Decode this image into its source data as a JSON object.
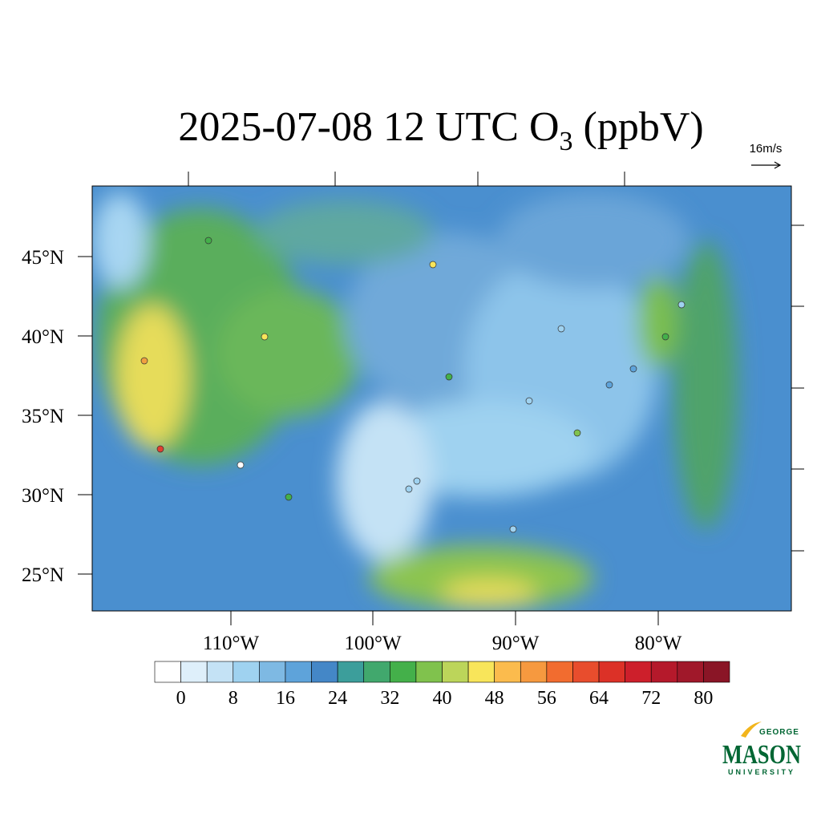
{
  "map": {
    "title": {
      "prefix": "2025-07-08 12 UTC O",
      "subscript": "3",
      "suffix": " (ppbV)"
    },
    "wind_scale": "16m/s",
    "lat_labels": [
      "45°N",
      "40°N",
      "35°N",
      "30°N",
      "25°N"
    ],
    "lon_labels": [
      "110°W",
      "100°W",
      "90°W",
      "80°W"
    ],
    "colorbar": {
      "ticks": [
        0,
        8,
        16,
        24,
        32,
        40,
        48,
        56,
        64,
        72,
        80
      ],
      "colors": [
        "#ffffff",
        "#deeffa",
        "#c4e2f5",
        "#9fd2f0",
        "#7eb9e3",
        "#5ea3da",
        "#4487c7",
        "#3c9e9b",
        "#41a86d",
        "#44b04a",
        "#80c24d",
        "#bcd55a",
        "#f8e55a",
        "#fbbb4d",
        "#f6993f",
        "#f26c2f",
        "#e84d2d",
        "#dc3127",
        "#cd1f2b",
        "#b5192b",
        "#a0182a",
        "#8a1526"
      ]
    },
    "logo": {
      "top": "GEORGE",
      "main": "MASON",
      "bottom": "UNIVERSITY"
    }
  }
}
